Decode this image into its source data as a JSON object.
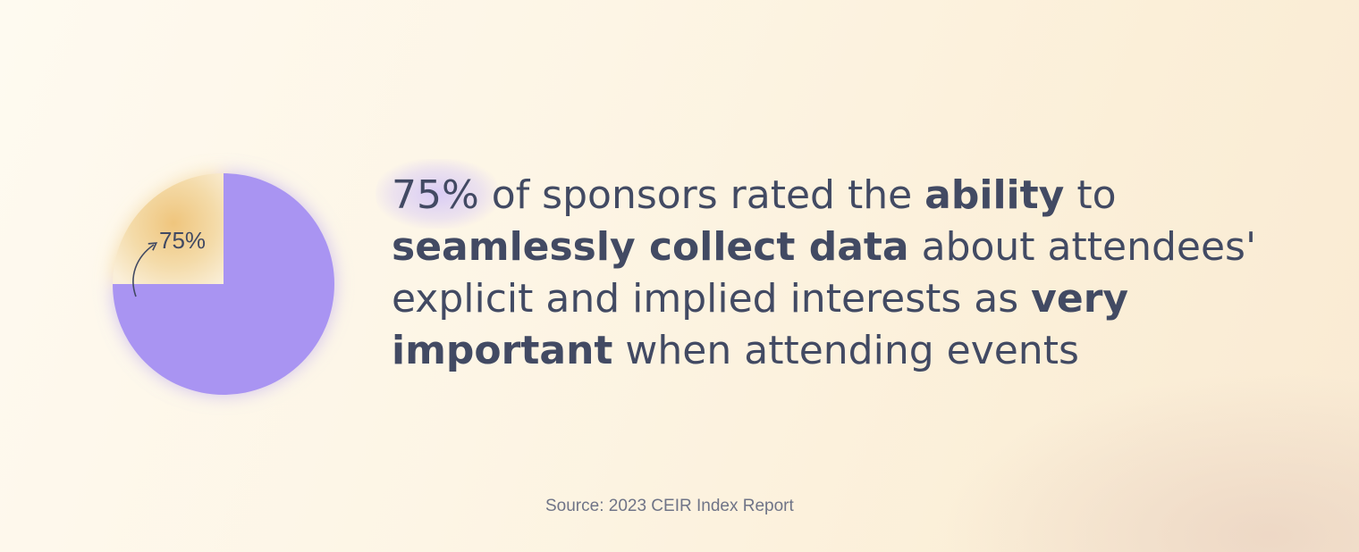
{
  "chart_data": {
    "type": "pie",
    "slices": [
      {
        "value": 75,
        "color": "#a994f2"
      },
      {
        "value": 25,
        "color": "#f3d9a6"
      }
    ],
    "data_labels": [
      "75%"
    ]
  },
  "headline": {
    "stat": "75%",
    "t1": " of sponsors rated the ",
    "b1": "ability",
    "t2": " to",
    "b2": "seamlessly collect data",
    "t3": " about attendees'",
    "t4": "explicit and implied interests as ",
    "b3": "very",
    "b4": "important",
    "t5": " when attending events"
  },
  "source": "Source: 2023 CEIR Index Report",
  "colors": {
    "text": "#424a63",
    "accent_purple": "#a994f2",
    "accent_orange": "#f0c982"
  }
}
